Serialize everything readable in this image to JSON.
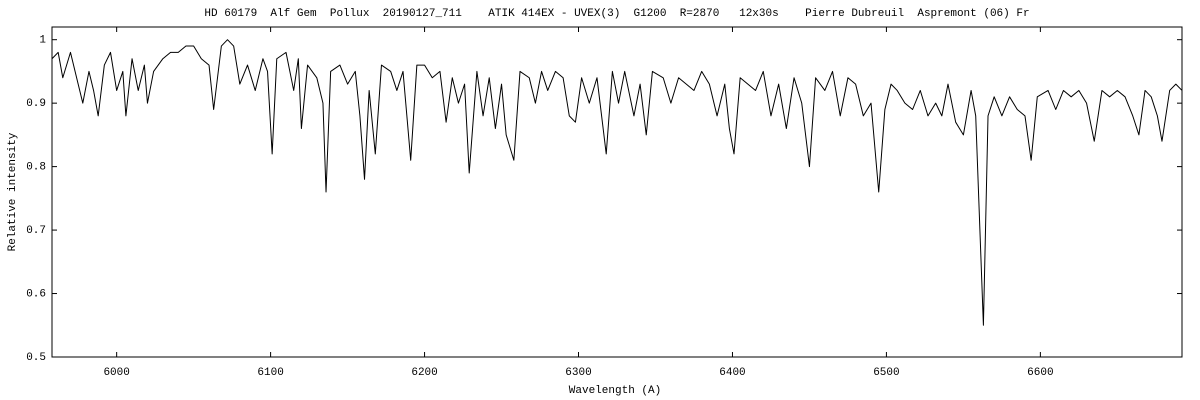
{
  "chart_data": {
    "type": "line",
    "title": "HD 60179  Alf Gem  Pollux  20190127_711    ATIK 414EX - UVEX(3)  G1200  R=2870   12x30s    Pierre Dubreuil  Aspremont (06) Fr",
    "x_label": "Wavelength (A)",
    "y_label": "Relative intensity",
    "xlim": [
      5958,
      6692
    ],
    "ylim": [
      0.5,
      1.02
    ],
    "xticks": [
      6000,
      6100,
      6200,
      6300,
      6400,
      6500,
      6600
    ],
    "yticks": [
      0.5,
      0.6,
      0.7,
      0.8,
      0.9,
      1
    ],
    "grid": false,
    "series": [
      {
        "color": "#000000",
        "x": [
          5958,
          5962,
          5965,
          5970,
          5975,
          5978,
          5982,
          5985,
          5988,
          5992,
          5996,
          6000,
          6004,
          6006,
          6010,
          6014,
          6018,
          6020,
          6024,
          6030,
          6035,
          6040,
          6045,
          6050,
          6055,
          6060,
          6063,
          6068,
          6072,
          6076,
          6080,
          6085,
          6090,
          6095,
          6098,
          6101,
          6104,
          6110,
          6115,
          6118,
          6120,
          6124,
          6130,
          6134,
          6136,
          6139,
          6145,
          6150,
          6155,
          6158,
          6161,
          6164,
          6168,
          6172,
          6178,
          6182,
          6186,
          6191,
          6195,
          6200,
          6205,
          6210,
          6214,
          6218,
          6222,
          6226,
          6229,
          6234,
          6238,
          6242,
          6246,
          6250,
          6253,
          6258,
          6262,
          6268,
          6272,
          6276,
          6280,
          6285,
          6290,
          6294,
          6298,
          6302,
          6307,
          6312,
          6318,
          6322,
          6326,
          6330,
          6336,
          6340,
          6344,
          6348,
          6355,
          6360,
          6365,
          6370,
          6375,
          6380,
          6385,
          6390,
          6395,
          6398,
          6401,
          6405,
          6410,
          6415,
          6420,
          6425,
          6430,
          6435,
          6440,
          6445,
          6450,
          6454,
          6460,
          6465,
          6470,
          6475,
          6480,
          6485,
          6490,
          6495,
          6499,
          6503,
          6507,
          6512,
          6517,
          6522,
          6527,
          6532,
          6536,
          6540,
          6545,
          6550,
          6555,
          6558,
          6563,
          6566,
          6570,
          6575,
          6580,
          6585,
          6590,
          6594,
          6598,
          6605,
          6610,
          6615,
          6620,
          6625,
          6630,
          6635,
          6640,
          6645,
          6650,
          6655,
          6660,
          6664,
          6668,
          6672,
          6676,
          6679,
          6684,
          6688,
          6692
        ],
        "values": [
          0.97,
          0.98,
          0.94,
          0.98,
          0.93,
          0.9,
          0.95,
          0.92,
          0.88,
          0.96,
          0.98,
          0.92,
          0.95,
          0.88,
          0.97,
          0.92,
          0.96,
          0.9,
          0.95,
          0.97,
          0.98,
          0.98,
          0.99,
          0.99,
          0.97,
          0.96,
          0.89,
          0.99,
          1.0,
          0.99,
          0.93,
          0.96,
          0.92,
          0.97,
          0.95,
          0.82,
          0.97,
          0.98,
          0.92,
          0.97,
          0.86,
          0.96,
          0.94,
          0.9,
          0.76,
          0.95,
          0.96,
          0.93,
          0.95,
          0.88,
          0.78,
          0.92,
          0.82,
          0.96,
          0.95,
          0.92,
          0.95,
          0.81,
          0.96,
          0.96,
          0.94,
          0.95,
          0.87,
          0.94,
          0.9,
          0.93,
          0.79,
          0.95,
          0.88,
          0.94,
          0.86,
          0.93,
          0.85,
          0.81,
          0.95,
          0.94,
          0.9,
          0.95,
          0.92,
          0.95,
          0.94,
          0.88,
          0.87,
          0.94,
          0.9,
          0.94,
          0.82,
          0.95,
          0.9,
          0.95,
          0.88,
          0.93,
          0.85,
          0.95,
          0.94,
          0.9,
          0.94,
          0.93,
          0.92,
          0.95,
          0.93,
          0.88,
          0.93,
          0.86,
          0.82,
          0.94,
          0.93,
          0.92,
          0.95,
          0.88,
          0.93,
          0.86,
          0.94,
          0.9,
          0.8,
          0.94,
          0.92,
          0.95,
          0.88,
          0.94,
          0.93,
          0.88,
          0.9,
          0.76,
          0.89,
          0.93,
          0.92,
          0.9,
          0.89,
          0.92,
          0.88,
          0.9,
          0.88,
          0.93,
          0.87,
          0.85,
          0.92,
          0.88,
          0.55,
          0.88,
          0.91,
          0.88,
          0.91,
          0.89,
          0.88,
          0.81,
          0.91,
          0.92,
          0.89,
          0.92,
          0.91,
          0.92,
          0.9,
          0.84,
          0.92,
          0.91,
          0.92,
          0.91,
          0.88,
          0.85,
          0.92,
          0.91,
          0.88,
          0.84,
          0.92,
          0.93,
          0.92
        ]
      }
    ]
  }
}
